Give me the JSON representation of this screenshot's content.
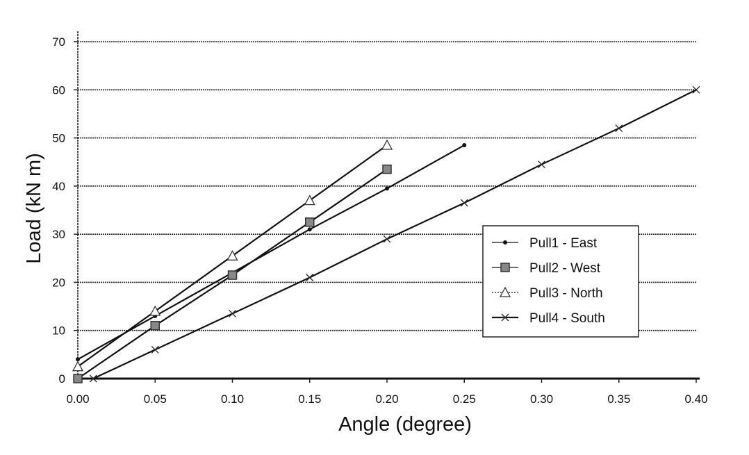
{
  "chart_data": {
    "type": "line",
    "title": "",
    "xlabel": "Angle (degree)",
    "ylabel": "Load (kN m)",
    "xlim": [
      0,
      0.4
    ],
    "ylim": [
      0,
      70
    ],
    "xticks": [
      "0.00",
      "0.05",
      "0.10",
      "0.15",
      "0.20",
      "0.25",
      "0.30",
      "0.35",
      "0.40"
    ],
    "yticks": [
      "0",
      "10",
      "20",
      "30",
      "40",
      "50",
      "60",
      "70"
    ],
    "grid": "horizontal",
    "legend_position": "right",
    "series": [
      {
        "name": "Pull1 - East",
        "marker": "dot",
        "x": [
          0,
          0.05,
          0.1,
          0.15,
          0.2,
          0.25
        ],
        "y": [
          4,
          13,
          22,
          31,
          39.5,
          48.5
        ]
      },
      {
        "name": "Pull2 - West",
        "marker": "square",
        "x": [
          0,
          0.05,
          0.1,
          0.15,
          0.2
        ],
        "y": [
          0,
          11,
          21.5,
          32.5,
          43.5
        ]
      },
      {
        "name": "Pull3 - North",
        "marker": "triangle",
        "x": [
          0,
          0.05,
          0.1,
          0.15,
          0.2
        ],
        "y": [
          2.5,
          14,
          25.5,
          37,
          48.5
        ]
      },
      {
        "name": "Pull4 - South",
        "marker": "x",
        "x": [
          0.01,
          0.05,
          0.1,
          0.15,
          0.2,
          0.25,
          0.3,
          0.35,
          0.4
        ],
        "y": [
          0,
          6,
          13.5,
          21,
          29,
          36.5,
          44.5,
          52,
          60
        ]
      }
    ]
  }
}
